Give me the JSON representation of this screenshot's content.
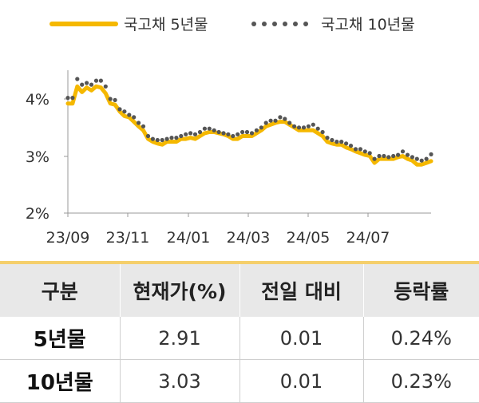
{
  "chart_data": {
    "type": "line",
    "series": [
      {
        "name": "국고채 5년물",
        "color": "#f5b800",
        "style": "solid",
        "values": [
          3.92,
          3.92,
          4.22,
          4.12,
          4.2,
          4.15,
          4.22,
          4.2,
          4.1,
          3.92,
          3.9,
          3.78,
          3.7,
          3.68,
          3.6,
          3.52,
          3.45,
          3.3,
          3.25,
          3.22,
          3.2,
          3.25,
          3.25,
          3.25,
          3.3,
          3.3,
          3.32,
          3.3,
          3.35,
          3.4,
          3.42,
          3.42,
          3.4,
          3.38,
          3.35,
          3.3,
          3.3,
          3.35,
          3.35,
          3.35,
          3.4,
          3.45,
          3.52,
          3.55,
          3.58,
          3.6,
          3.6,
          3.55,
          3.5,
          3.45,
          3.45,
          3.45,
          3.45,
          3.4,
          3.35,
          3.25,
          3.22,
          3.2,
          3.2,
          3.15,
          3.12,
          3.08,
          3.05,
          3.02,
          3.0,
          2.88,
          2.95,
          2.95,
          2.95,
          2.95,
          2.98,
          3.0,
          2.95,
          2.92,
          2.85,
          2.85,
          2.88,
          2.91
        ]
      },
      {
        "name": "국고채 10년물",
        "color": "#555555",
        "style": "dotted",
        "values": [
          4.02,
          4.02,
          4.35,
          4.25,
          4.28,
          4.25,
          4.32,
          4.32,
          4.22,
          4.0,
          3.98,
          3.82,
          3.78,
          3.72,
          3.68,
          3.58,
          3.52,
          3.35,
          3.3,
          3.28,
          3.28,
          3.3,
          3.32,
          3.32,
          3.35,
          3.38,
          3.4,
          3.38,
          3.42,
          3.48,
          3.48,
          3.45,
          3.42,
          3.4,
          3.38,
          3.35,
          3.38,
          3.42,
          3.42,
          3.4,
          3.45,
          3.5,
          3.58,
          3.62,
          3.62,
          3.68,
          3.65,
          3.58,
          3.52,
          3.5,
          3.5,
          3.52,
          3.55,
          3.48,
          3.42,
          3.32,
          3.28,
          3.25,
          3.25,
          3.22,
          3.18,
          3.12,
          3.12,
          3.08,
          3.05,
          2.95,
          3.0,
          3.0,
          2.98,
          3.0,
          3.02,
          3.08,
          3.02,
          2.98,
          2.95,
          2.92,
          2.95,
          3.03
        ]
      }
    ],
    "x_ticks": [
      "23/09",
      "23/11",
      "24/01",
      "24/03",
      "24/05",
      "24/07"
    ],
    "y_ticks": [
      "2%",
      "3%",
      "4%"
    ],
    "ylim": [
      2,
      4.6
    ],
    "legend": "top"
  },
  "table": {
    "headers": [
      "구분",
      "현재가(%)",
      "전일 대비",
      "등락률"
    ],
    "rows": [
      {
        "label": "5년물",
        "price": "2.91",
        "change": "0.01",
        "rate": "0.24%"
      },
      {
        "label": "10년물",
        "price": "3.03",
        "change": "0.01",
        "rate": "0.23%"
      }
    ]
  }
}
